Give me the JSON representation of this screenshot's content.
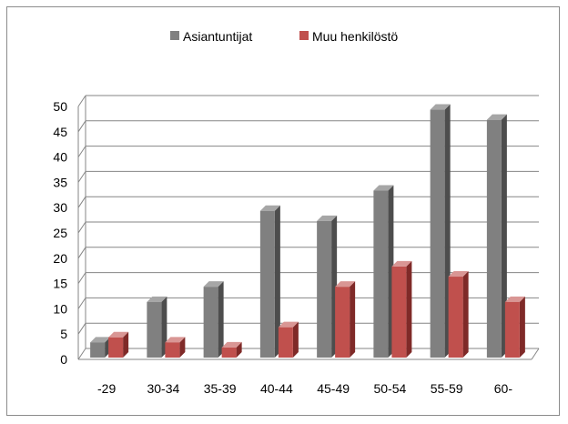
{
  "chart_data": {
    "type": "bar",
    "categories": [
      "-29",
      "30-34",
      "35-39",
      "40-44",
      "45-49",
      "50-54",
      "55-59",
      "60-"
    ],
    "series": [
      {
        "name": "Asiantuntijat",
        "values": [
          3,
          11,
          14,
          29,
          27,
          33,
          49,
          47
        ]
      },
      {
        "name": "Muu henkilöstö",
        "values": [
          4,
          3,
          2,
          6,
          14,
          18,
          16,
          11
        ]
      }
    ],
    "title": "",
    "xlabel": "",
    "ylabel": "",
    "ylim": [
      0,
      50
    ],
    "yticks": [
      "0",
      "5",
      "10",
      "15",
      "20",
      "25",
      "30",
      "35",
      "40",
      "45",
      "50"
    ],
    "grid": true,
    "legend_position": "top",
    "three_d": true,
    "colors": {
      "series_0_front": "#808080",
      "series_0_side": "#4d4d4d",
      "series_0_top": "#a6a6a6",
      "series_1_front": "#c0504d",
      "series_1_side": "#7f2a28",
      "series_1_top": "#d99694",
      "grid": "#868686",
      "axis": "#868686"
    }
  }
}
